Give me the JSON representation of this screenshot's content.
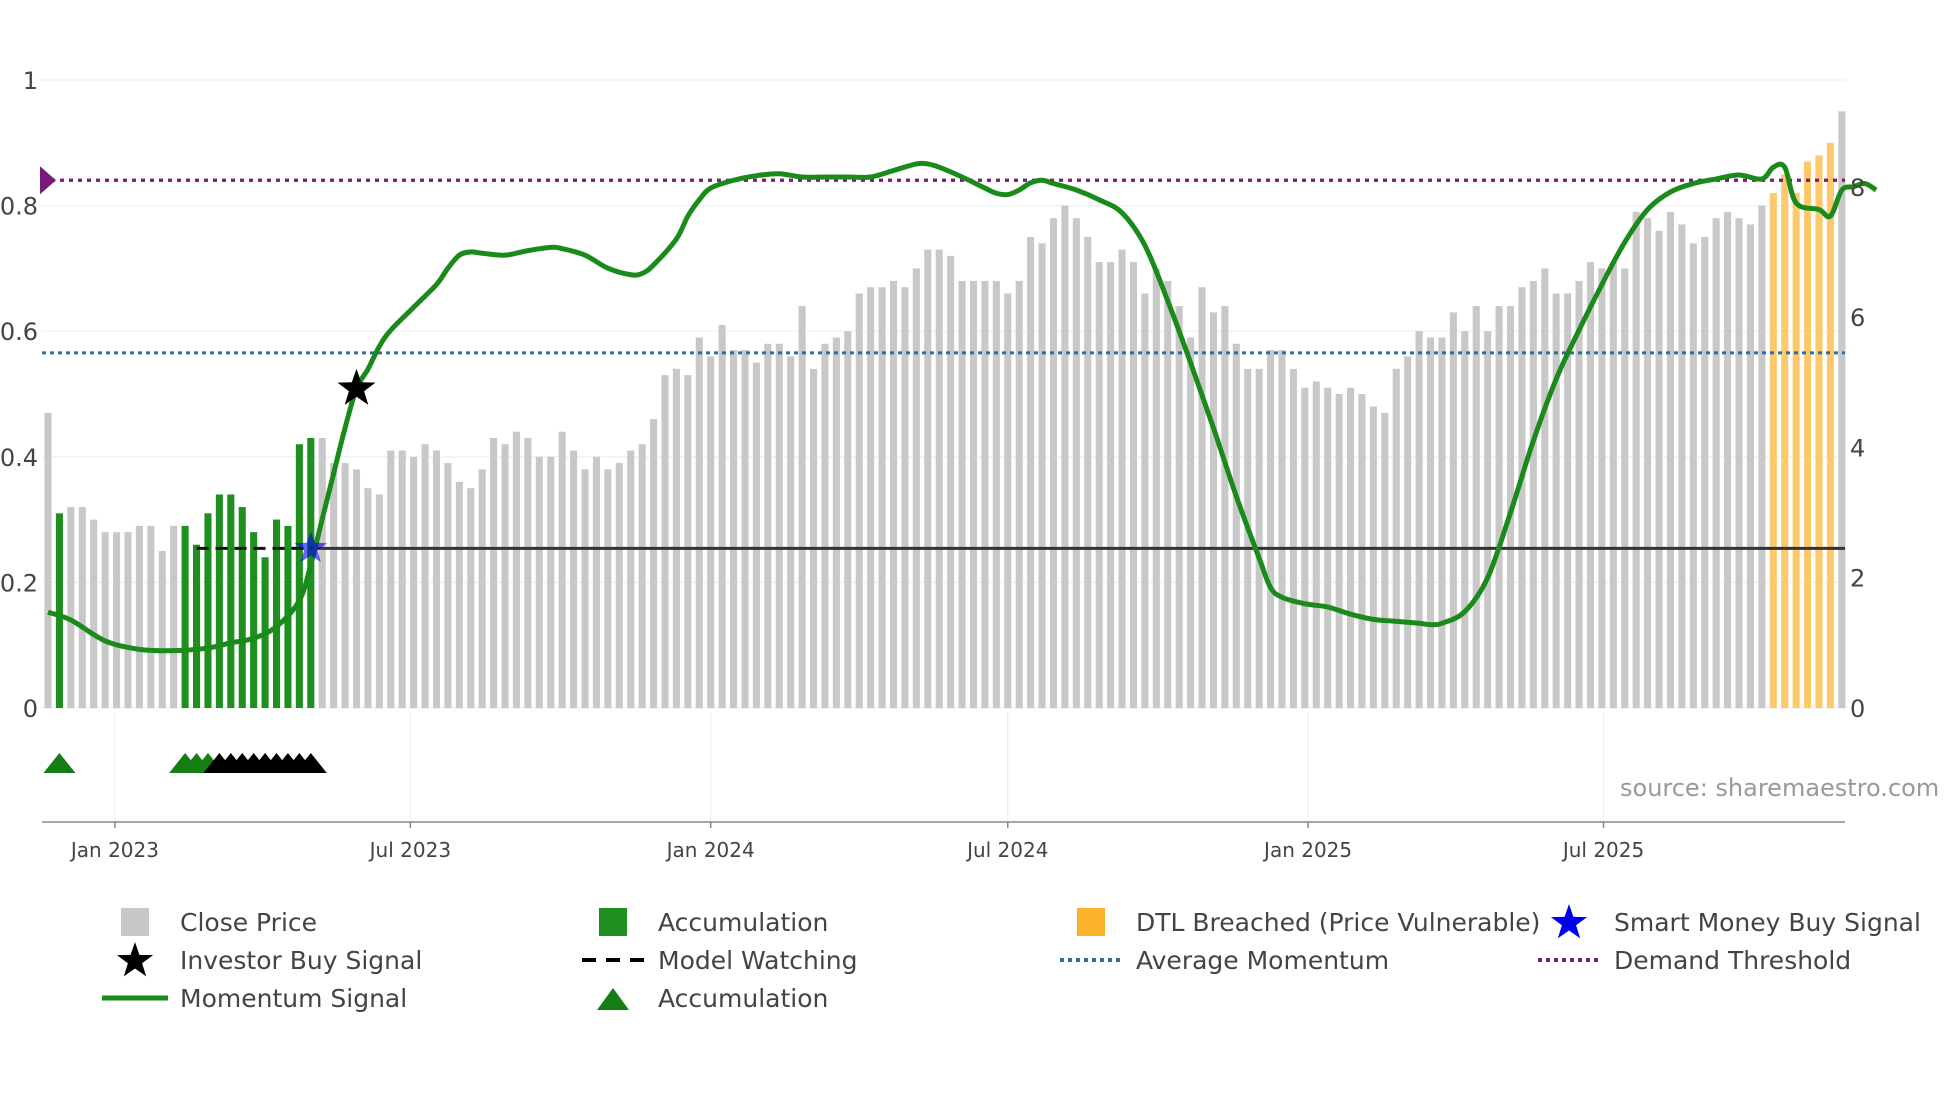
{
  "source_text": "source: sharemaestro.com",
  "colors": {
    "close": "#c8c8c8",
    "accumulation": "#1f8f1f",
    "dtl": "#fdc96a",
    "momentum": "#1a8a1a",
    "avg_momentum": "#2e6e9e",
    "demand": "#7a1a7a",
    "model": "#333333",
    "star_blue": "#0000ee"
  },
  "legend": [
    {
      "label": "Close Price",
      "icon": "gray-square"
    },
    {
      "label": "Accumulation",
      "icon": "green-square"
    },
    {
      "label": "DTL Breached (Price Vulnerable)",
      "icon": "orange-square"
    },
    {
      "label": "Smart Money Buy Signal",
      "icon": "blue-star"
    },
    {
      "label": "Investor Buy Signal",
      "icon": "black-star"
    },
    {
      "label": "Model Watching",
      "icon": "black-dash"
    },
    {
      "label": "Average Momentum",
      "icon": "blue-dot-line"
    },
    {
      "label": "Demand Threshold",
      "icon": "purple-dot-line"
    },
    {
      "label": "Momentum Signal",
      "icon": "green-line"
    },
    {
      "label": "Accumulation",
      "icon": "green-triangle"
    }
  ],
  "chart_data": {
    "type": "bar",
    "title": "",
    "left_axis": {
      "range": [
        0,
        1
      ],
      "ticks": [
        0,
        0.2,
        0.4,
        0.6,
        0.8,
        1
      ],
      "tick_labels": [
        "0",
        "0.2",
        "0.4",
        "0.6",
        "0.8",
        "1"
      ]
    },
    "right_axis": {
      "range": [
        0,
        9.7
      ],
      "ticks": [
        0,
        2,
        4,
        6,
        8
      ],
      "tick_labels": [
        "0",
        "2",
        "4",
        "6",
        "8"
      ]
    },
    "x_axis": {
      "start": "2022-11-21",
      "end": "2025-10-27",
      "bar_step_days": 7,
      "ticks": [
        "2023-01-01",
        "2023-07-01",
        "2024-01-01",
        "2024-07-01",
        "2025-01-01",
        "2025-07-01"
      ],
      "tick_labels": [
        "Jan 2023",
        "Jul 2023",
        "Jan 2024",
        "Jul 2024",
        "Jan 2025",
        "Jul 2025"
      ]
    },
    "bar_values": [
      0.47,
      0.31,
      0.32,
      0.32,
      0.3,
      0.28,
      0.28,
      0.28,
      0.29,
      0.29,
      0.25,
      0.29,
      0.29,
      0.26,
      0.31,
      0.34,
      0.34,
      0.32,
      0.28,
      0.24,
      0.3,
      0.29,
      0.42,
      0.43,
      0.43,
      0.39,
      0.39,
      0.38,
      0.35,
      0.34,
      0.41,
      0.41,
      0.4,
      0.42,
      0.41,
      0.39,
      0.36,
      0.35,
      0.38,
      0.43,
      0.42,
      0.44,
      0.43,
      0.4,
      0.4,
      0.44,
      0.41,
      0.38,
      0.4,
      0.38,
      0.39,
      0.41,
      0.42,
      0.46,
      0.53,
      0.54,
      0.53,
      0.59,
      0.56,
      0.61,
      0.57,
      0.57,
      0.55,
      0.58,
      0.58,
      0.56,
      0.64,
      0.54,
      0.58,
      0.59,
      0.6,
      0.66,
      0.67,
      0.67,
      0.68,
      0.67,
      0.7,
      0.73,
      0.73,
      0.72,
      0.68,
      0.68,
      0.68,
      0.68,
      0.66,
      0.68,
      0.75,
      0.74,
      0.78,
      0.8,
      0.78,
      0.75,
      0.71,
      0.71,
      0.73,
      0.71,
      0.66,
      0.7,
      0.68,
      0.64,
      0.59,
      0.67,
      0.63,
      0.64,
      0.58,
      0.54,
      0.54,
      0.57,
      0.57,
      0.54,
      0.51,
      0.52,
      0.51,
      0.5,
      0.51,
      0.5,
      0.48,
      0.47,
      0.54,
      0.56,
      0.6,
      0.59,
      0.59,
      0.63,
      0.6,
      0.64,
      0.6,
      0.64,
      0.64,
      0.67,
      0.68,
      0.7,
      0.66,
      0.66,
      0.68,
      0.71,
      0.7,
      0.71,
      0.7,
      0.79,
      0.78,
      0.76,
      0.79,
      0.77,
      0.74,
      0.75,
      0.78,
      0.79,
      0.78,
      0.77,
      0.8,
      0.82,
      0.85,
      0.82,
      0.87,
      0.88,
      0.9,
      0.95
    ],
    "bar_categories_by_index": {
      "accumulation": [
        1,
        12,
        13,
        14,
        15,
        16,
        17,
        18,
        19,
        20,
        21,
        22,
        23
      ],
      "dtl_breached": [
        151,
        152,
        153,
        154,
        155,
        156
      ]
    },
    "momentum_signal": {
      "axis": "right",
      "points": [
        [
          0,
          1.47
        ],
        [
          2,
          1.35
        ],
        [
          5,
          1.03
        ],
        [
          8,
          0.9
        ],
        [
          11,
          0.88
        ],
        [
          14,
          0.92
        ],
        [
          16,
          1.0
        ],
        [
          18,
          1.07
        ],
        [
          20,
          1.25
        ],
        [
          22,
          1.65
        ],
        [
          23,
          2.2
        ],
        [
          24,
          2.9
        ],
        [
          25,
          3.6
        ],
        [
          26,
          4.3
        ],
        [
          27,
          4.9
        ],
        [
          28,
          5.2
        ],
        [
          29,
          5.55
        ],
        [
          30,
          5.8
        ],
        [
          32,
          6.15
        ],
        [
          34,
          6.5
        ],
        [
          35,
          6.75
        ],
        [
          36,
          6.95
        ],
        [
          37,
          7.0
        ],
        [
          38,
          6.98
        ],
        [
          40,
          6.95
        ],
        [
          42,
          7.02
        ],
        [
          44,
          7.07
        ],
        [
          45,
          7.05
        ],
        [
          47,
          6.95
        ],
        [
          49,
          6.75
        ],
        [
          51,
          6.65
        ],
        [
          52,
          6.67
        ],
        [
          53,
          6.8
        ],
        [
          55,
          7.2
        ],
        [
          56,
          7.55
        ],
        [
          57,
          7.8
        ],
        [
          58,
          7.98
        ],
        [
          60,
          8.1
        ],
        [
          62,
          8.17
        ],
        [
          64,
          8.2
        ],
        [
          66,
          8.15
        ],
        [
          68,
          8.15
        ],
        [
          70,
          8.15
        ],
        [
          72,
          8.15
        ],
        [
          74,
          8.25
        ],
        [
          76,
          8.35
        ],
        [
          77,
          8.35
        ],
        [
          78,
          8.3
        ],
        [
          80,
          8.15
        ],
        [
          82,
          7.98
        ],
        [
          83,
          7.9
        ],
        [
          84,
          7.88
        ],
        [
          85,
          7.95
        ],
        [
          86,
          8.06
        ],
        [
          87,
          8.1
        ],
        [
          88,
          8.05
        ],
        [
          90,
          7.95
        ],
        [
          92,
          7.8
        ],
        [
          94,
          7.6
        ],
        [
          96,
          7.1
        ],
        [
          98,
          6.25
        ],
        [
          100,
          5.3
        ],
        [
          102,
          4.3
        ],
        [
          104,
          3.25
        ],
        [
          106,
          2.3
        ],
        [
          107,
          1.85
        ],
        [
          108,
          1.7
        ],
        [
          110,
          1.6
        ],
        [
          112,
          1.55
        ],
        [
          114,
          1.44
        ],
        [
          116,
          1.36
        ],
        [
          118,
          1.33
        ],
        [
          120,
          1.3
        ],
        [
          121,
          1.28
        ],
        [
          122,
          1.3
        ],
        [
          124,
          1.48
        ],
        [
          126,
          2.0
        ],
        [
          128,
          3.0
        ],
        [
          130,
          4.1
        ],
        [
          132,
          5.05
        ],
        [
          134,
          5.8
        ],
        [
          136,
          6.5
        ],
        [
          138,
          7.15
        ],
        [
          140,
          7.65
        ],
        [
          142,
          7.92
        ],
        [
          144,
          8.05
        ],
        [
          146,
          8.12
        ],
        [
          148,
          8.18
        ],
        [
          150,
          8.12
        ],
        [
          151,
          8.3
        ],
        [
          152,
          8.3
        ],
        [
          153,
          7.75
        ],
        [
          155,
          7.65
        ],
        [
          156,
          7.55
        ],
        [
          157,
          7.95
        ],
        [
          158,
          8.0
        ],
        [
          159,
          8.05
        ],
        [
          160,
          7.95
        ]
      ]
    },
    "average_momentum": {
      "axis": "right",
      "value": 5.45
    },
    "demand_threshold": {
      "axis": "right",
      "value": 8.1
    },
    "model_watching": {
      "axis": "right",
      "value": 2.45,
      "dashed_until_index": 23
    },
    "smart_money_buy_signal": {
      "index": 23,
      "value": 2.45,
      "axis": "right"
    },
    "investor_buy_signal": {
      "index": 27,
      "value": 4.9,
      "axis": "right"
    },
    "accumulation_markers": {
      "green_indices": [
        1,
        12,
        13,
        14
      ],
      "black_indices": [
        15,
        16,
        17,
        18,
        19,
        20,
        21,
        22,
        23
      ]
    }
  }
}
